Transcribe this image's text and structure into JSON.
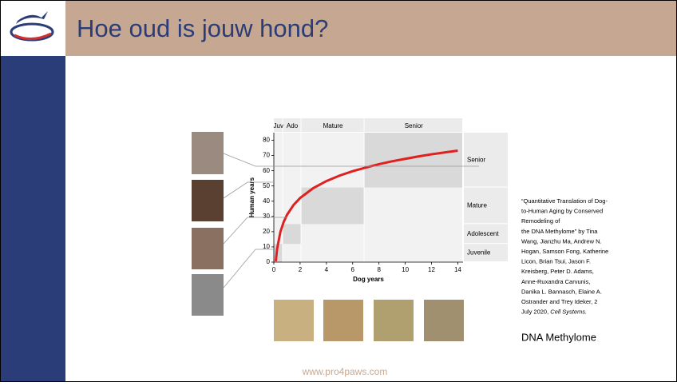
{
  "header": {
    "title": "Hoe oud is jouw hond?"
  },
  "chart_data": {
    "type": "line",
    "x_label": "Dog years",
    "y_label": "Human years",
    "x": [
      0.15,
      0.25,
      0.5,
      0.75,
      1,
      1.5,
      2,
      3,
      4,
      5,
      6,
      7,
      8,
      9,
      10,
      11,
      12,
      13,
      14
    ],
    "series": [
      {
        "color": "#e02020",
        "values": [
          0.6,
          8.8,
          19.9,
          26.4,
          31,
          37.5,
          42.1,
          48.6,
          53.2,
          56.8,
          59.7,
          62.1,
          64.3,
          66.2,
          67.8,
          69.4,
          70.8,
          72.0,
          73.2
        ]
      }
    ],
    "xlim": [
      0,
      14.4
    ],
    "ylim": [
      0,
      85
    ],
    "xticks": [
      0,
      2,
      4,
      6,
      8,
      10,
      12,
      14
    ],
    "yticks": [
      0,
      10,
      20,
      30,
      40,
      50,
      60,
      70,
      80
    ],
    "dog_stages": [
      {
        "label": "Juv",
        "range": [
          0,
          0.7
        ]
      },
      {
        "label": "Ado",
        "range": [
          0.7,
          2.1
        ]
      },
      {
        "label": "Mature",
        "range": [
          2.1,
          6.9
        ]
      },
      {
        "label": "Senior",
        "range": [
          6.9,
          14.4
        ]
      }
    ],
    "human_stages": [
      {
        "label": "Juvenile",
        "range": [
          0,
          12
        ]
      },
      {
        "label": "Adolescent",
        "range": [
          12,
          25
        ]
      },
      {
        "label": "Mature",
        "range": [
          25,
          49
        ]
      },
      {
        "label": "Senior",
        "range": [
          49,
          85
        ]
      }
    ]
  },
  "citation": {
    "lines": [
      "“Quantitative Translation of Dog-",
      "to-Human Aging by Conserved",
      "Remodeling of",
      "the DNA Methylome” by Tina",
      "Wang, Jianzhu Ma, Andrew N.",
      "Hogan, Samson Fong, Katherine",
      "Licon, Brian Tsui, Jason F.",
      "Kreisberg, Peter D. Adams,",
      "Anne-Ruxandra Carvunis,",
      "Danika L. Bannasch, Elaine A.",
      "Ostrander and Trey Ideker, 2"
    ],
    "last": "July 2020, ",
    "journal": "Cell Systems."
  },
  "caption": "DNA Methylome",
  "footer": "www.pro4paws.com"
}
